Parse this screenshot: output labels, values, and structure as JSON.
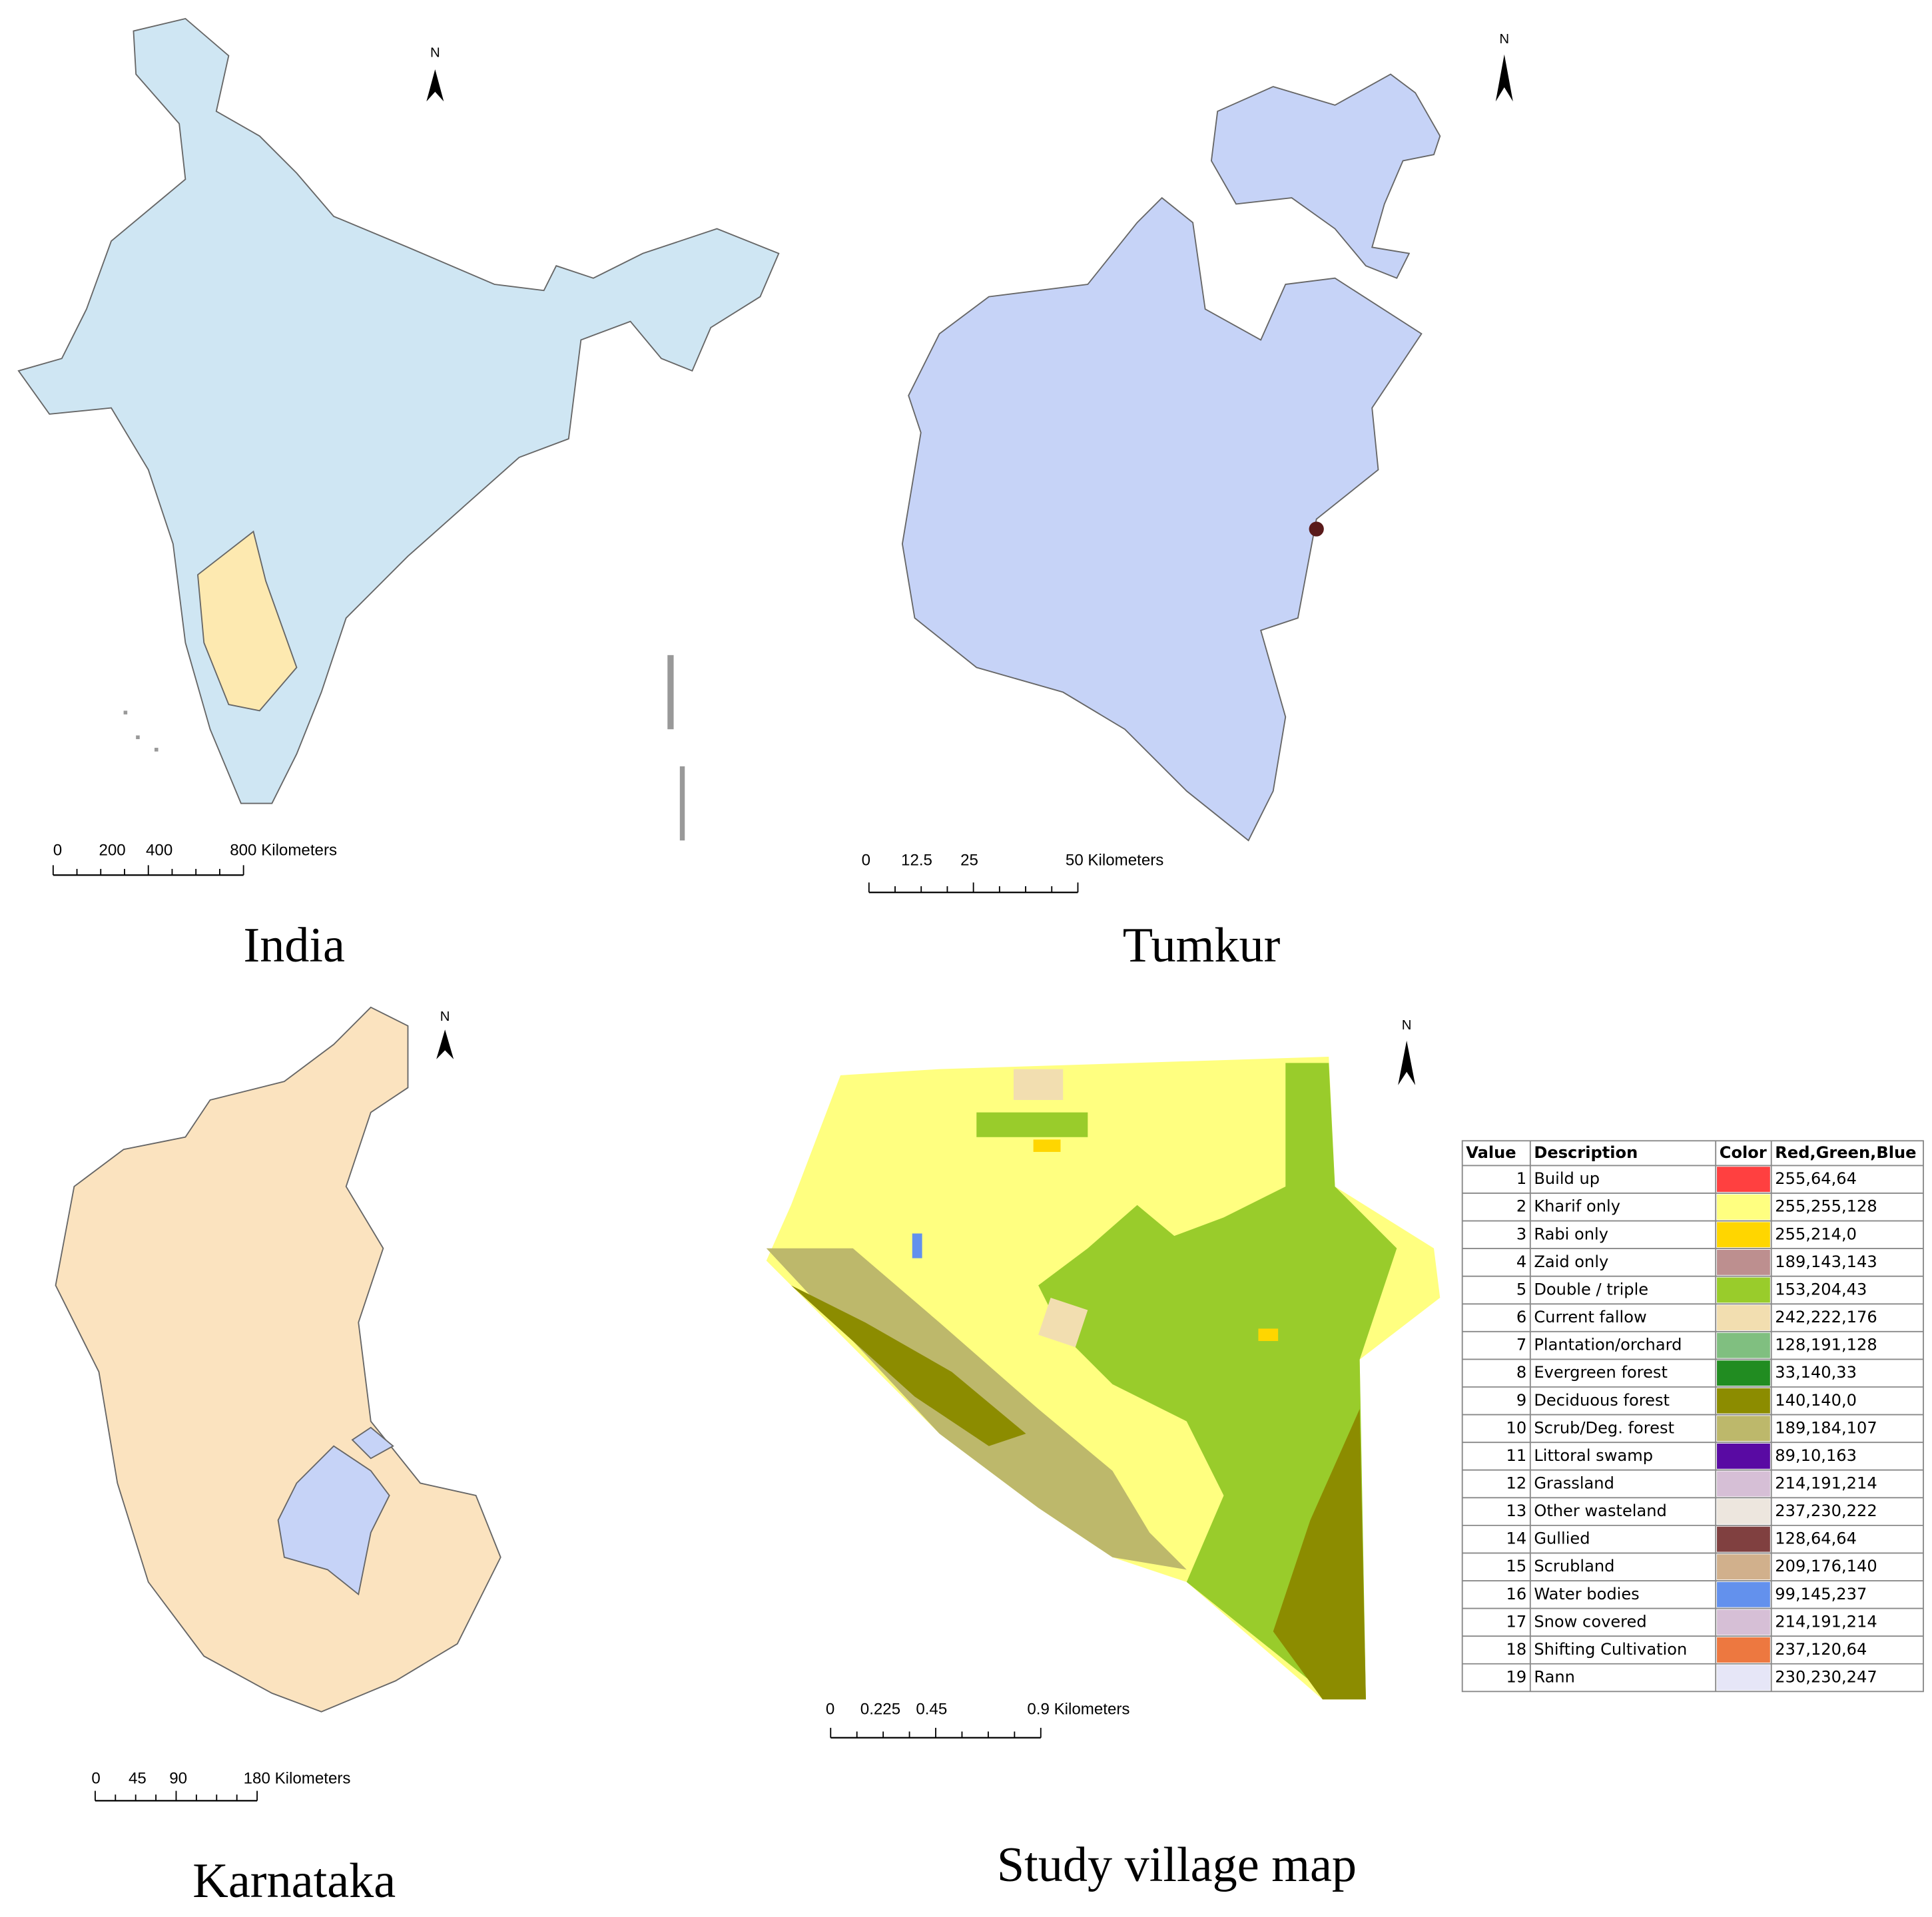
{
  "panels": [
    {
      "title": "India",
      "north": "N",
      "scale_labels": [
        "0",
        "200",
        "400",
        "800 Kilometers"
      ]
    },
    {
      "title": "Tumkur",
      "north": "N",
      "scale_labels": [
        "0",
        "12.5",
        "25",
        "50 Kilometers"
      ]
    },
    {
      "title": "Karnataka",
      "north": "N",
      "scale_labels": [
        "0",
        "45",
        "90",
        "180 Kilometers"
      ]
    },
    {
      "title": "Study village map",
      "north": "N",
      "scale_labels": [
        "0",
        "0.225",
        "0.45",
        "0.9 Kilometers"
      ]
    }
  ],
  "legend": {
    "header": [
      "Value",
      "Description",
      "Color",
      "Red,Green,Blue"
    ],
    "rows": [
      [
        "1",
        "Build up",
        "255,64,64"
      ],
      [
        "2",
        "Kharif only",
        "255,255,128"
      ],
      [
        "3",
        "Rabi only",
        "255,214,0"
      ],
      [
        "4",
        "Zaid only",
        "189,143,143"
      ],
      [
        "5",
        "Double / triple",
        "153,204,43"
      ],
      [
        "6",
        "Current fallow",
        "242,222,176"
      ],
      [
        "7",
        "Plantation/orchard",
        "128,191,128"
      ],
      [
        "8",
        "Evergreen forest",
        "33,140,33"
      ],
      [
        "9",
        "Deciduous forest",
        "140,140,0"
      ],
      [
        "10",
        "Scrub/Deg. forest",
        "189,184,107"
      ],
      [
        "11",
        "Littoral swamp",
        "89,10,163"
      ],
      [
        "12",
        "Grassland",
        "214,191,214"
      ],
      [
        "13",
        "Other wasteland",
        "237,230,222"
      ],
      [
        "14",
        "Gullied",
        "128,64,64"
      ],
      [
        "15",
        "Scrubland",
        "209,176,140"
      ],
      [
        "16",
        "Water bodies",
        "99,145,237"
      ],
      [
        "17",
        "Snow covered",
        "214,191,214"
      ],
      [
        "18",
        "Shifting Cultivation",
        "237,120,64"
      ],
      [
        "19",
        "Rann",
        "230,230,247"
      ]
    ]
  }
}
